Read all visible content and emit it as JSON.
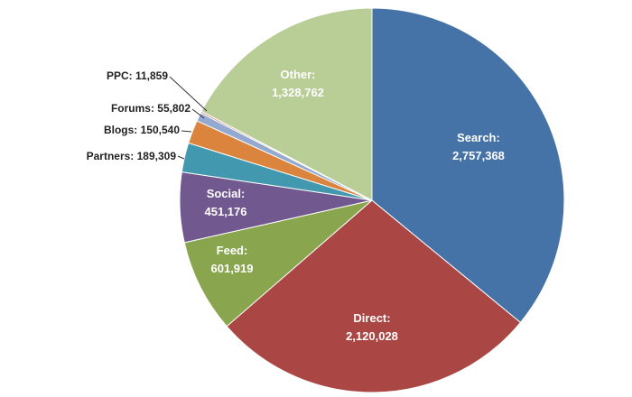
{
  "chart_data": {
    "type": "pie",
    "slices": [
      {
        "label": "Search",
        "display": "2,757,368",
        "value": 2757368,
        "color": "#4572A7",
        "text": "Search:",
        "label_pos": "inside"
      },
      {
        "label": "Direct",
        "display": "2,120,028",
        "value": 2120028,
        "color": "#AA4643",
        "text": "Direct:",
        "label_pos": "inside"
      },
      {
        "label": "Feed",
        "display": "601,919",
        "value": 601919,
        "color": "#89A54E",
        "text": "Feed:",
        "label_pos": "inside"
      },
      {
        "label": "Social",
        "display": "451,176",
        "value": 451176,
        "color": "#71588F",
        "text": "Social:",
        "label_pos": "inside"
      },
      {
        "label": "Partners",
        "display": "189,309",
        "value": 189309,
        "color": "#4198AF",
        "text": "Partners: 189,309",
        "label_pos": "outside"
      },
      {
        "label": "Blogs",
        "display": "150,540",
        "value": 150540,
        "color": "#DB843D",
        "text": "Blogs: 150,540",
        "label_pos": "outside"
      },
      {
        "label": "Forums",
        "display": "55,802",
        "value": 55802,
        "color": "#93A9CF",
        "text": "Forums: 55,802",
        "label_pos": "outside"
      },
      {
        "label": "PPC",
        "display": "11,859",
        "value": 11859,
        "color": "#D19392",
        "text": "PPC: 11,859",
        "label_pos": "outside"
      },
      {
        "label": "Other",
        "display": "1,328,762",
        "value": 1328762,
        "color": "#B9CD96",
        "text": "Other:",
        "label_pos": "inside"
      }
    ],
    "start": "12 o'clock",
    "direction": "clockwise",
    "legend": "none"
  }
}
